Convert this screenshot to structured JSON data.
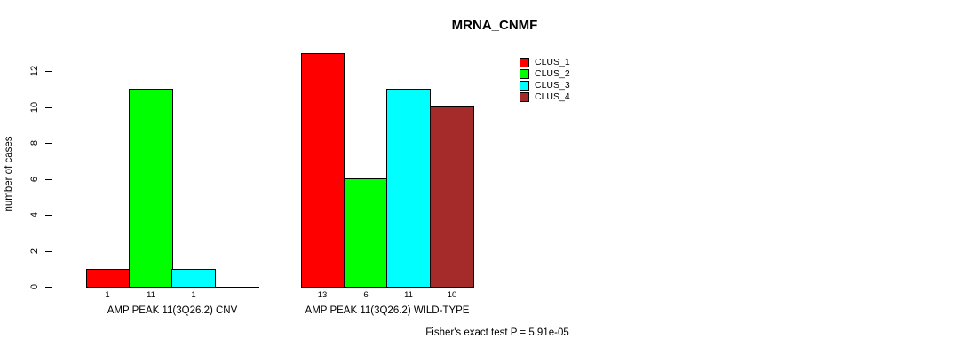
{
  "title": "MRNA_CNMF",
  "ylabel": "number of cases",
  "footer": "Fisher's exact test P = 5.91e-05",
  "legend": {
    "entries": [
      {
        "label": "CLUS_1",
        "color": "#FF0000"
      },
      {
        "label": "CLUS_2",
        "color": "#00FF00"
      },
      {
        "label": "CLUS_3",
        "color": "#00FFFF"
      },
      {
        "label": "CLUS_4",
        "color": "#A52A2A"
      }
    ]
  },
  "chart_data": {
    "type": "bar",
    "title": "MRNA_CNMF",
    "xlabel": "",
    "ylabel": "number of cases",
    "ylim": [
      0,
      13
    ],
    "yticks": [
      0,
      2,
      4,
      6,
      8,
      10,
      12
    ],
    "grid": false,
    "legend_position": "right",
    "series": [
      "CLUS_1",
      "CLUS_2",
      "CLUS_3",
      "CLUS_4"
    ],
    "series_colors": [
      "#FF0000",
      "#00FF00",
      "#00FFFF",
      "#A52A2A"
    ],
    "groups": [
      {
        "label": "AMP PEAK 11(3Q26.2) CNV",
        "values": [
          1,
          11,
          1,
          0
        ],
        "bar_labels": [
          "1",
          "11",
          "1",
          ""
        ]
      },
      {
        "label": "AMP PEAK 11(3Q26.2) WILD-TYPE",
        "values": [
          13,
          6,
          11,
          10
        ],
        "bar_labels": [
          "13",
          "6",
          "11",
          "10"
        ]
      }
    ],
    "annotation": "Fisher's exact test P = 5.91e-05"
  }
}
